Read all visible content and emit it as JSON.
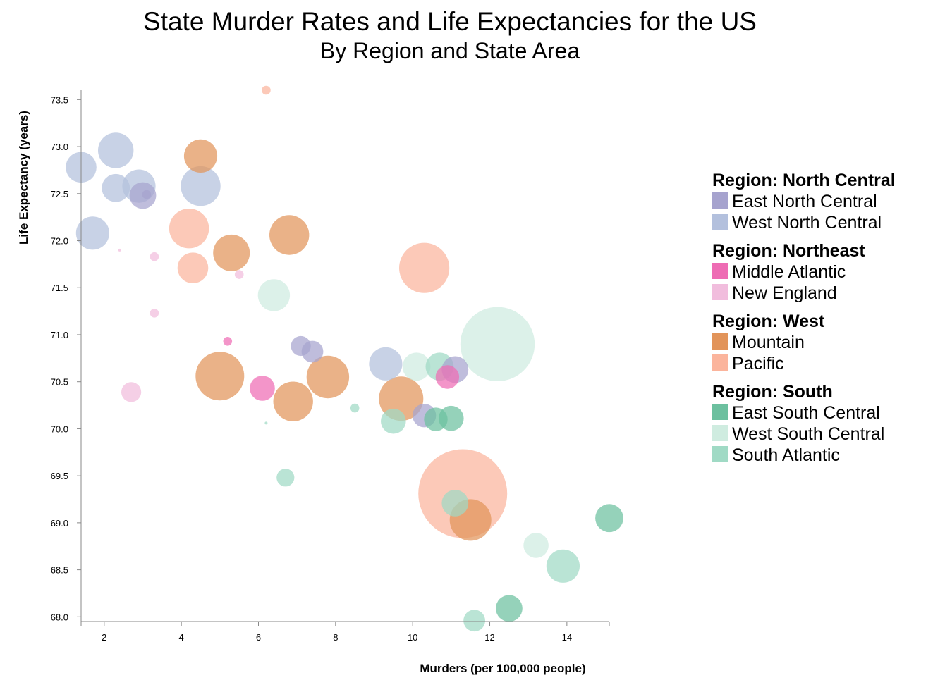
{
  "chart_data": {
    "type": "scatter",
    "title": "State Murder Rates and Life Expectancies for the US",
    "subtitle": "By Region and State Area",
    "xlabel": "Murders (per 100,000 people)",
    "ylabel": "Life Expectancy (years)",
    "xlim": [
      1.4,
      15.1
    ],
    "ylim": [
      67.95,
      73.6
    ],
    "x_ticks": [
      "2",
      "4",
      "6",
      "8",
      "10",
      "12",
      "14"
    ],
    "y_ticks": [
      "68.0",
      "68.5",
      "69.0",
      "69.5",
      "70.0",
      "70.5",
      "71.0",
      "71.5",
      "72.0",
      "72.5",
      "73.0",
      "73.5"
    ],
    "size_encoding": "State Area",
    "grid": false,
    "legend_position": "right",
    "legend": [
      {
        "group": "Region: North Central",
        "items": [
          {
            "name": "East North Central",
            "color": "#a6a3ce"
          },
          {
            "name": "West North Central",
            "color": "#b3c0dd"
          }
        ]
      },
      {
        "group": "Region: Northeast",
        "items": [
          {
            "name": "Middle Atlantic",
            "color": "#ee6cb4"
          },
          {
            "name": "New England",
            "color": "#f1bddd"
          }
        ]
      },
      {
        "group": "Region: West",
        "items": [
          {
            "name": "Mountain",
            "color": "#e2945a"
          },
          {
            "name": "Pacific",
            "color": "#fbb49c"
          }
        ]
      },
      {
        "group": "Region: South",
        "items": [
          {
            "name": "East South Central",
            "color": "#6cc09f"
          },
          {
            "name": "West South Central",
            "color": "#cfece0"
          },
          {
            "name": "South Atlantic",
            "color": "#a0dac5"
          }
        ]
      }
    ],
    "series": [
      {
        "name": "East North Central",
        "color": "#a6a3ce",
        "points": [
          {
            "x": 3.0,
            "y": 72.48,
            "area": 9
          },
          {
            "x": 3.1,
            "y": 72.49,
            "area": 1
          },
          {
            "x": 7.1,
            "y": 70.88,
            "area": 5
          },
          {
            "x": 7.4,
            "y": 70.82,
            "area": 6
          },
          {
            "x": 10.3,
            "y": 70.14,
            "area": 7
          },
          {
            "x": 11.1,
            "y": 70.63,
            "area": 9
          }
        ]
      },
      {
        "name": "West North Central",
        "color": "#b3c0dd",
        "points": [
          {
            "x": 1.4,
            "y": 72.78,
            "area": 12
          },
          {
            "x": 2.3,
            "y": 72.96,
            "area": 16
          },
          {
            "x": 2.3,
            "y": 72.56,
            "area": 10
          },
          {
            "x": 2.9,
            "y": 72.58,
            "area": 14
          },
          {
            "x": 4.5,
            "y": 72.58,
            "area": 20
          },
          {
            "x": 1.7,
            "y": 72.08,
            "area": 14
          },
          {
            "x": 9.3,
            "y": 70.69,
            "area": 14
          }
        ]
      },
      {
        "name": "Middle Atlantic",
        "color": "#ee6cb4",
        "points": [
          {
            "x": 5.2,
            "y": 70.93,
            "area": 1
          },
          {
            "x": 6.1,
            "y": 70.43,
            "area": 8
          },
          {
            "x": 10.9,
            "y": 70.55,
            "area": 7
          }
        ]
      },
      {
        "name": "New England",
        "color": "#f1bddd",
        "points": [
          {
            "x": 2.4,
            "y": 71.9,
            "area": 0.1
          },
          {
            "x": 3.3,
            "y": 71.83,
            "area": 1
          },
          {
            "x": 3.3,
            "y": 71.23,
            "area": 1
          },
          {
            "x": 5.5,
            "y": 71.64,
            "area": 1
          },
          {
            "x": 2.7,
            "y": 70.39,
            "area": 5
          }
        ]
      },
      {
        "name": "Mountain",
        "color": "#e2945a",
        "points": [
          {
            "x": 4.5,
            "y": 72.9,
            "area": 14
          },
          {
            "x": 5.3,
            "y": 71.87,
            "area": 17
          },
          {
            "x": 6.8,
            "y": 72.06,
            "area": 20
          },
          {
            "x": 5.0,
            "y": 70.56,
            "area": 30
          },
          {
            "x": 6.9,
            "y": 70.29,
            "area": 20
          },
          {
            "x": 7.8,
            "y": 70.55,
            "area": 23
          },
          {
            "x": 9.7,
            "y": 70.32,
            "area": 25
          },
          {
            "x": 11.5,
            "y": 69.03,
            "area": 22
          }
        ]
      },
      {
        "name": "Pacific",
        "color": "#fbb49c",
        "points": [
          {
            "x": 6.2,
            "y": 73.6,
            "area": 1
          },
          {
            "x": 4.2,
            "y": 72.13,
            "area": 20
          },
          {
            "x": 4.3,
            "y": 71.71,
            "area": 12
          },
          {
            "x": 10.3,
            "y": 71.71,
            "area": 32
          },
          {
            "x": 11.3,
            "y": 69.31,
            "area": 100
          }
        ]
      },
      {
        "name": "East South Central",
        "color": "#6cc09f",
        "points": [
          {
            "x": 10.6,
            "y": 70.1,
            "area": 7
          },
          {
            "x": 11.0,
            "y": 70.11,
            "area": 8
          },
          {
            "x": 15.1,
            "y": 69.05,
            "area": 10
          },
          {
            "x": 12.5,
            "y": 68.09,
            "area": 9
          }
        ]
      },
      {
        "name": "West South Central",
        "color": "#cfece0",
        "points": [
          {
            "x": 6.4,
            "y": 71.42,
            "area": 13
          },
          {
            "x": 10.1,
            "y": 70.66,
            "area": 10
          },
          {
            "x": 12.2,
            "y": 70.9,
            "area": 70
          },
          {
            "x": 13.2,
            "y": 68.76,
            "area": 8
          }
        ]
      },
      {
        "name": "South Atlantic",
        "color": "#a0dac5",
        "points": [
          {
            "x": 6.2,
            "y": 70.06,
            "area": 0.1
          },
          {
            "x": 8.5,
            "y": 70.22,
            "area": 1
          },
          {
            "x": 9.5,
            "y": 70.08,
            "area": 8
          },
          {
            "x": 10.7,
            "y": 70.66,
            "area": 10
          },
          {
            "x": 6.7,
            "y": 69.48,
            "area": 4
          },
          {
            "x": 11.1,
            "y": 69.21,
            "area": 9
          },
          {
            "x": 13.9,
            "y": 68.54,
            "area": 14
          },
          {
            "x": 11.6,
            "y": 67.96,
            "area": 6
          }
        ]
      }
    ]
  }
}
